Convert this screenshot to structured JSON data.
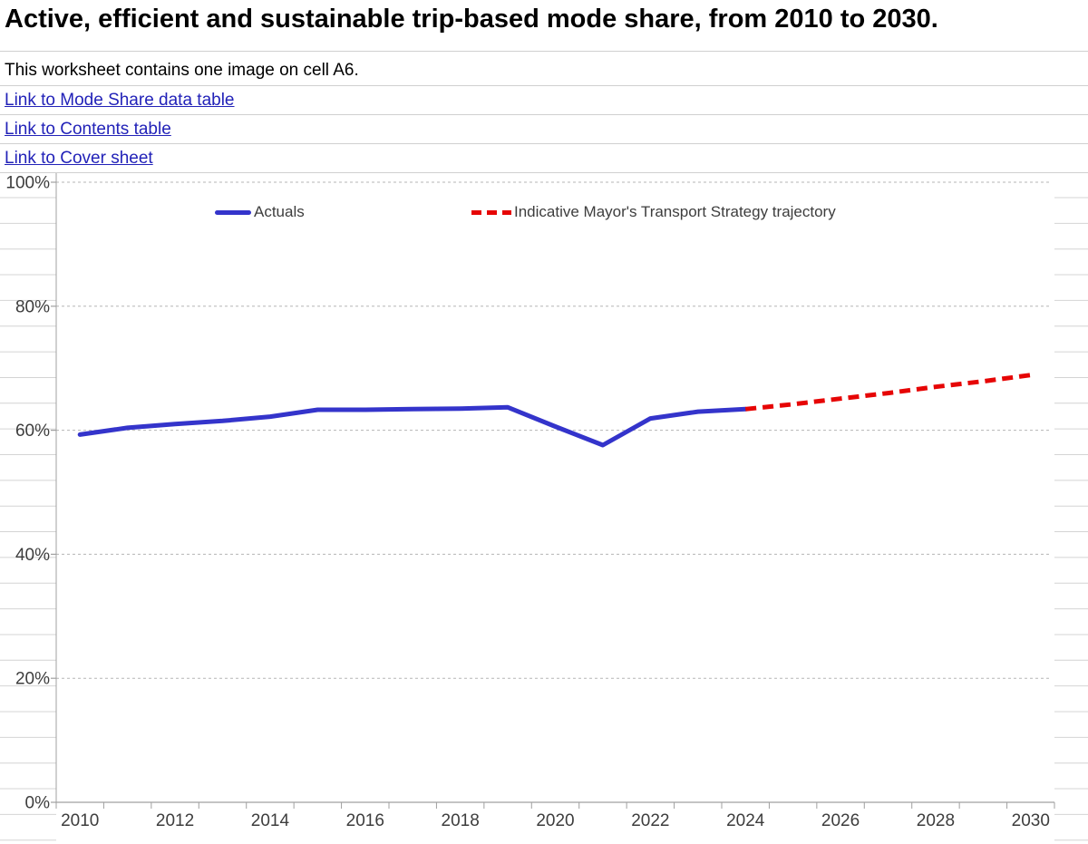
{
  "header": {
    "title": "Active, efficient and sustainable trip-based mode share, from 2010 to 2030.",
    "note": "This worksheet contains one image on cell A6.",
    "links": [
      "Link to Mode Share data table",
      "Link to Contents table",
      "Link to Cover sheet"
    ]
  },
  "chart_data": {
    "type": "line",
    "title": "Active, efficient and sustainable trip-based mode share, from 2010 to 2030",
    "xlabel": "",
    "ylabel": "",
    "x_range": [
      2010,
      2030
    ],
    "x_tick_labels": [
      "2010",
      "2012",
      "2014",
      "2016",
      "2018",
      "2020",
      "2022",
      "2024",
      "2026",
      "2028",
      "2030"
    ],
    "y_tick_labels": [
      "0%",
      "20%",
      "40%",
      "60%",
      "80%",
      "100%"
    ],
    "ylim": [
      0,
      100
    ],
    "grid": "horizontal-dashed",
    "grid_color": "#b5b5b5",
    "axis_color": "#a0a0a0",
    "legend_position": "top-inside",
    "series": [
      {
        "name": "Actuals",
        "color": "#3434cb",
        "line_style": "solid",
        "x": [
          2010,
          2011,
          2012,
          2013,
          2014,
          2015,
          2016,
          2017,
          2018,
          2019,
          2020,
          2021,
          2022,
          2023,
          2024
        ],
        "values": [
          59.3,
          60.4,
          61.0,
          61.5,
          62.2,
          63.3,
          63.3,
          63.4,
          63.5,
          63.7,
          60.6,
          57.6,
          61.9,
          63.0,
          63.4
        ]
      },
      {
        "name": "Indicative Mayor's Transport Strategy trajectory",
        "color": "#e60505",
        "line_style": "dashed",
        "x": [
          2024,
          2025,
          2026,
          2027,
          2028,
          2029,
          2030
        ],
        "values": [
          63.4,
          64.2,
          65.1,
          66.0,
          67.0,
          67.9,
          68.9
        ]
      }
    ]
  }
}
